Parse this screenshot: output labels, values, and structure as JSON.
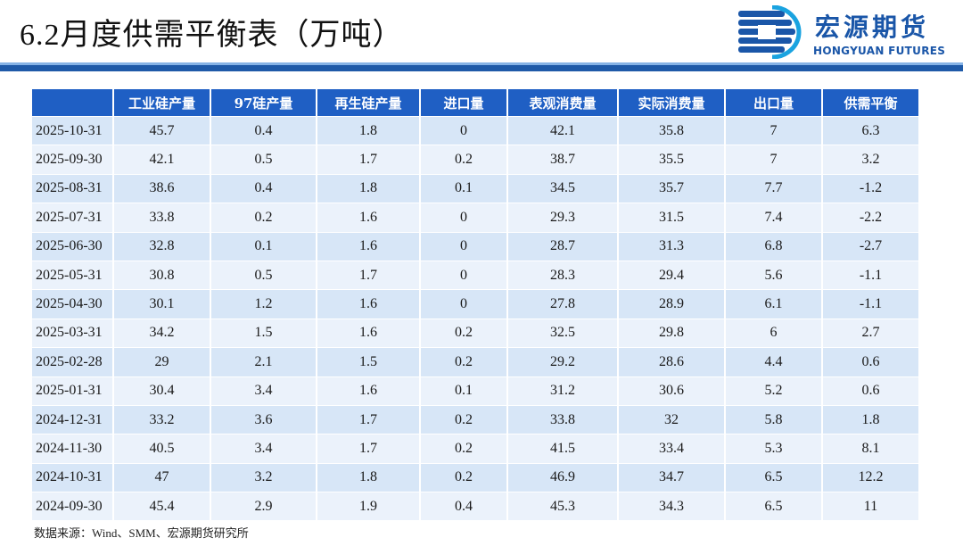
{
  "title": "6.2月度供需平衡表（万吨）",
  "logo": {
    "name_cn": "宏源期货",
    "name_en": "HONGYUAN FUTURES",
    "brand_color": "#1a56a8"
  },
  "table": {
    "headers": [
      "",
      "工业硅产量",
      "97硅产量",
      "再生硅产量",
      "进口量",
      "表观消费量",
      "实际消费量",
      "出口量",
      "供需平衡"
    ],
    "rows": [
      [
        "2025-10-31",
        "45.7",
        "0.4",
        "1.8",
        "0",
        "42.1",
        "35.8",
        "7",
        "6.3"
      ],
      [
        "2025-09-30",
        "42.1",
        "0.5",
        "1.7",
        "0.2",
        "38.7",
        "35.5",
        "7",
        "3.2"
      ],
      [
        "2025-08-31",
        "38.6",
        "0.4",
        "1.8",
        "0.1",
        "34.5",
        "35.7",
        "7.7",
        "-1.2"
      ],
      [
        "2025-07-31",
        "33.8",
        "0.2",
        "1.6",
        "0",
        "29.3",
        "31.5",
        "7.4",
        "-2.2"
      ],
      [
        "2025-06-30",
        "32.8",
        "0.1",
        "1.6",
        "0",
        "28.7",
        "31.3",
        "6.8",
        "-2.7"
      ],
      [
        "2025-05-31",
        "30.8",
        "0.5",
        "1.7",
        "0",
        "28.3",
        "29.4",
        "5.6",
        "-1.1"
      ],
      [
        "2025-04-30",
        "30.1",
        "1.2",
        "1.6",
        "0",
        "27.8",
        "28.9",
        "6.1",
        "-1.1"
      ],
      [
        "2025-03-31",
        "34.2",
        "1.5",
        "1.6",
        "0.2",
        "32.5",
        "29.8",
        "6",
        "2.7"
      ],
      [
        "2025-02-28",
        "29",
        "2.1",
        "1.5",
        "0.2",
        "29.2",
        "28.6",
        "4.4",
        "0.6"
      ],
      [
        "2025-01-31",
        "30.4",
        "3.4",
        "1.6",
        "0.1",
        "31.2",
        "30.6",
        "5.2",
        "0.6"
      ],
      [
        "2024-12-31",
        "33.2",
        "3.6",
        "1.7",
        "0.2",
        "33.8",
        "32",
        "5.8",
        "1.8"
      ],
      [
        "2024-11-30",
        "40.5",
        "3.4",
        "1.7",
        "0.2",
        "41.5",
        "33.4",
        "5.3",
        "8.1"
      ],
      [
        "2024-10-31",
        "47",
        "3.2",
        "1.8",
        "0.2",
        "46.9",
        "34.7",
        "6.5",
        "12.2"
      ],
      [
        "2024-09-30",
        "45.4",
        "2.9",
        "1.9",
        "0.4",
        "45.3",
        "34.3",
        "6.5",
        "11"
      ]
    ]
  },
  "source": "数据来源：Wind、SMM、宏源期货研究所",
  "colors": {
    "header_bg": "#1f5fc4",
    "row_odd": "#d7e6f7",
    "row_even": "#ebf2fb",
    "rule": "#1f5aa8"
  }
}
